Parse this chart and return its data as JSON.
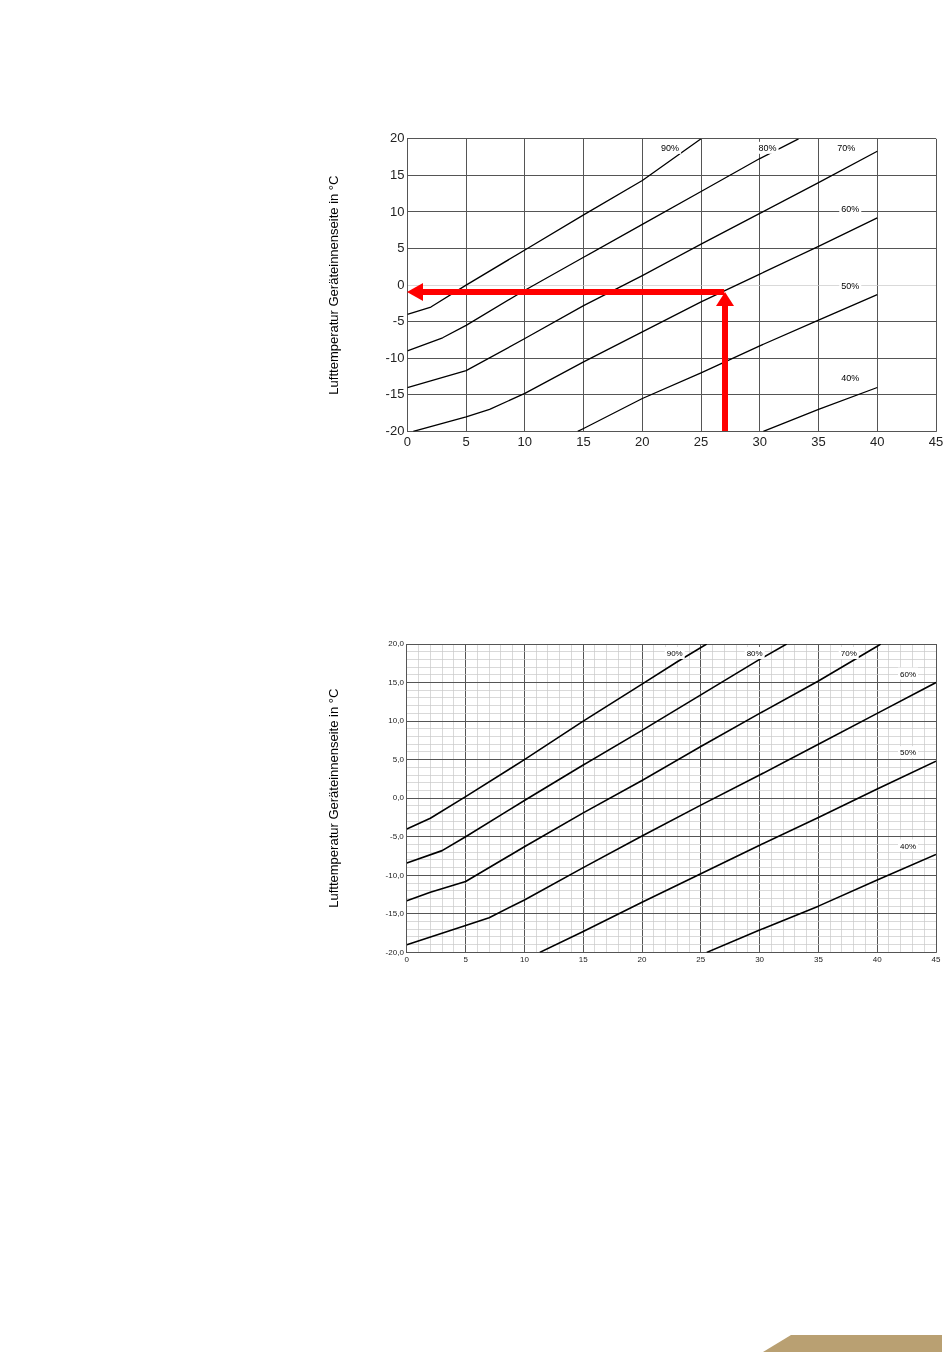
{
  "chart_data": [
    {
      "type": "line",
      "ylabel": "Lufttemperatur Geräteinnenseite in °C",
      "xlim": [
        0,
        45
      ],
      "ylim": [
        -20,
        20
      ],
      "xticks": [
        0,
        5,
        10,
        15,
        20,
        25,
        30,
        35,
        40,
        45
      ],
      "yticks": [
        -20,
        -15,
        -10,
        -5,
        0,
        5,
        10,
        15,
        20
      ],
      "grid": true,
      "legend": false,
      "marker": "none",
      "series": [
        {
          "name": "90%",
          "color": "#000000",
          "x": [
            0,
            2,
            5,
            10,
            15,
            20,
            25
          ],
          "values": [
            -4,
            -3,
            0,
            4.8,
            9.6,
            14.3,
            20
          ]
        },
        {
          "name": "80%",
          "color": "#000000",
          "x": [
            0,
            3,
            5,
            10,
            15,
            20,
            25,
            30,
            33.3
          ],
          "values": [
            -9,
            -7.2,
            -5.5,
            -0.7,
            3.8,
            8.3,
            12.8,
            17.3,
            20
          ]
        },
        {
          "name": "70%",
          "color": "#000000",
          "x": [
            0,
            5,
            10,
            15,
            20,
            25,
            30,
            35,
            40
          ],
          "values": [
            -14,
            -11.7,
            -7.3,
            -2.8,
            1.3,
            5.6,
            9.8,
            14,
            18.3
          ]
        },
        {
          "name": "60%",
          "color": "#000000",
          "x": [
            0.5,
            5,
            7,
            10,
            15,
            20,
            25,
            30,
            35,
            40
          ],
          "values": [
            -20,
            -18,
            -17,
            -14.8,
            -10.5,
            -6.4,
            -2.3,
            1.5,
            5.3,
            9.2
          ]
        },
        {
          "name": "50%",
          "color": "#000000",
          "x": [
            14.5,
            15,
            20,
            25,
            30,
            35,
            40
          ],
          "values": [
            -20,
            -19.6,
            -15.5,
            -12,
            -8.3,
            -4.8,
            -1.3
          ]
        },
        {
          "name": "40%",
          "color": "#000000",
          "x": [
            30.3,
            35,
            40
          ],
          "values": [
            -20,
            -17,
            -14
          ]
        }
      ]
    },
    {
      "type": "line",
      "ylabel": "Lufttemperatur Geräteinnenseite in °C",
      "xlim": [
        0,
        45
      ],
      "ylim": [
        -20,
        20
      ],
      "xticks": [
        0,
        {
          "value": 1,
          "label": null
        },
        {
          "value": 2,
          "label": null
        },
        {
          "value": 3,
          "label": null
        },
        {
          "value": 4,
          "label": null
        },
        5,
        {
          "value": 6,
          "label": null
        },
        {
          "value": 7,
          "label": null
        },
        {
          "value": 8,
          "label": null
        },
        {
          "value": 9,
          "label": null
        },
        10,
        {
          "value": 11,
          "label": null
        },
        {
          "value": 12,
          "label": null
        },
        {
          "value": 13,
          "label": null
        },
        {
          "value": 14,
          "label": null
        },
        15,
        {
          "value": 16,
          "label": null
        },
        {
          "value": 17,
          "label": null
        },
        {
          "value": 18,
          "label": null
        },
        {
          "value": 19,
          "label": null
        },
        20,
        {
          "value": 21,
          "label": null
        },
        {
          "value": 22,
          "label": null
        },
        {
          "value": 23,
          "label": null
        },
        {
          "value": 24,
          "label": null
        },
        25,
        {
          "value": 26,
          "label": null
        },
        {
          "value": 27,
          "label": null
        },
        {
          "value": 28,
          "label": null
        },
        {
          "value": 29,
          "label": null
        },
        30,
        {
          "value": 31,
          "label": null
        },
        {
          "value": 32,
          "label": null
        },
        {
          "value": 33,
          "label": null
        },
        {
          "value": 34,
          "label": null
        },
        35,
        {
          "value": 36,
          "label": null
        },
        {
          "value": 37,
          "label": null
        },
        {
          "value": 38,
          "label": null
        },
        {
          "value": 39,
          "label": null
        },
        40,
        {
          "value": 41,
          "label": null
        },
        {
          "value": 42,
          "label": null
        },
        {
          "value": 43,
          "label": null
        },
        {
          "value": 44,
          "label": null
        },
        45
      ],
      "yticks": [
        {
          "value": -20,
          "label": "-20,0"
        },
        {
          "value": -19,
          "label": null
        },
        {
          "value": -18,
          "label": null
        },
        {
          "value": -17,
          "label": null
        },
        {
          "value": -16,
          "label": null
        },
        {
          "value": -15,
          "label": "-15,0"
        },
        {
          "value": -14,
          "label": null
        },
        {
          "value": -13,
          "label": null
        },
        {
          "value": -12,
          "label": null
        },
        {
          "value": -11,
          "label": null
        },
        {
          "value": -10,
          "label": "-10,0"
        },
        {
          "value": -9,
          "label": null
        },
        {
          "value": -8,
          "label": null
        },
        {
          "value": -7,
          "label": null
        },
        {
          "value": -6,
          "label": null
        },
        {
          "value": -5,
          "label": "-5,0"
        },
        {
          "value": -4,
          "label": null
        },
        {
          "value": -3,
          "label": null
        },
        {
          "value": -2,
          "label": null
        },
        {
          "value": -1,
          "label": null
        },
        {
          "value": 0,
          "label": "0,0"
        },
        {
          "value": 1,
          "label": null
        },
        {
          "value": 2,
          "label": null
        },
        {
          "value": 3,
          "label": null
        },
        {
          "value": 4,
          "label": null
        },
        {
          "value": 5,
          "label": "5,0"
        },
        {
          "value": 6,
          "label": null
        },
        {
          "value": 7,
          "label": null
        },
        {
          "value": 8,
          "label": null
        },
        {
          "value": 9,
          "label": null
        },
        {
          "value": 10,
          "label": "10,0"
        },
        {
          "value": 11,
          "label": null
        },
        {
          "value": 12,
          "label": null
        },
        {
          "value": 13,
          "label": null
        },
        {
          "value": 14,
          "label": null
        },
        {
          "value": 15,
          "label": "15,0"
        },
        {
          "value": 16,
          "label": null
        },
        {
          "value": 17,
          "label": null
        },
        {
          "value": 18,
          "label": null
        },
        {
          "value": 19,
          "label": null
        },
        {
          "value": 20,
          "label": "20,0"
        }
      ],
      "grid": true,
      "legend": false,
      "marker": "none",
      "series": [
        {
          "name": "90%",
          "color": "#000000",
          "x": [
            0,
            2,
            5,
            10,
            15,
            20,
            23,
            25.5
          ],
          "values": [
            -4,
            -2.6,
            0.2,
            5,
            10,
            14.8,
            17.7,
            20
          ]
        },
        {
          "name": "80%",
          "color": "#000000",
          "x": [
            0,
            3,
            5,
            10,
            15,
            20,
            25,
            30,
            32.3
          ],
          "values": [
            -8.4,
            -6.8,
            -5,
            -0.3,
            4.3,
            8.8,
            13.4,
            18,
            20
          ]
        },
        {
          "name": "70%",
          "color": "#000000",
          "x": [
            0,
            2,
            5,
            10,
            15,
            20,
            25,
            30,
            35,
            40,
            40.3
          ],
          "values": [
            -13.3,
            -12.2,
            -10.8,
            -6.3,
            -1.9,
            2.3,
            6.7,
            11,
            15.2,
            19.7,
            20
          ]
        },
        {
          "name": "60%",
          "color": "#000000",
          "x": [
            0,
            5,
            7,
            10,
            15,
            20,
            25,
            30,
            35,
            40,
            45
          ],
          "values": [
            -19,
            -16.5,
            -15.5,
            -13.2,
            -9,
            -4.9,
            -0.9,
            3,
            7,
            11,
            15
          ]
        },
        {
          "name": "50%",
          "color": "#000000",
          "x": [
            11.3,
            15,
            20,
            25,
            30,
            35,
            40,
            45
          ],
          "values": [
            -20,
            -17.3,
            -13.5,
            -9.8,
            -6.1,
            -2.5,
            1.2,
            4.8
          ]
        },
        {
          "name": "40%",
          "color": "#000000",
          "x": [
            25.5,
            30,
            35,
            40,
            45
          ],
          "values": [
            -20,
            -17.1,
            -14,
            -10.6,
            -7.3
          ]
        }
      ]
    }
  ]
}
